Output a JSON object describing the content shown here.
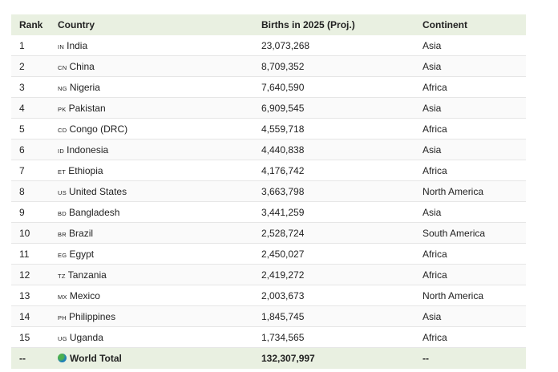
{
  "header": {
    "rank": "Rank",
    "country": "Country",
    "births": "Births in 2025 (Proj.)",
    "continent": "Continent"
  },
  "rows": [
    {
      "rank": "1",
      "code": "IN",
      "country": "India",
      "births": "23,073,268",
      "continent": "Asia"
    },
    {
      "rank": "2",
      "code": "CN",
      "country": "China",
      "births": "8,709,352",
      "continent": "Asia"
    },
    {
      "rank": "3",
      "code": "NG",
      "country": "Nigeria",
      "births": "7,640,590",
      "continent": "Africa"
    },
    {
      "rank": "4",
      "code": "PK",
      "country": "Pakistan",
      "births": "6,909,545",
      "continent": "Asia"
    },
    {
      "rank": "5",
      "code": "CD",
      "country": "Congo (DRC)",
      "births": "4,559,718",
      "continent": "Africa"
    },
    {
      "rank": "6",
      "code": "ID",
      "country": "Indonesia",
      "births": "4,440,838",
      "continent": "Asia"
    },
    {
      "rank": "7",
      "code": "ET",
      "country": "Ethiopia",
      "births": "4,176,742",
      "continent": "Africa"
    },
    {
      "rank": "8",
      "code": "US",
      "country": "United States",
      "births": "3,663,798",
      "continent": "North America"
    },
    {
      "rank": "9",
      "code": "BD",
      "country": "Bangladesh",
      "births": "3,441,259",
      "continent": "Asia"
    },
    {
      "rank": "10",
      "code": "BR",
      "country": "Brazil",
      "births": "2,528,724",
      "continent": "South America"
    },
    {
      "rank": "11",
      "code": "EG",
      "country": "Egypt",
      "births": "2,450,027",
      "continent": "Africa"
    },
    {
      "rank": "12",
      "code": "TZ",
      "country": "Tanzania",
      "births": "2,419,272",
      "continent": "Africa"
    },
    {
      "rank": "13",
      "code": "MX",
      "country": "Mexico",
      "births": "2,003,673",
      "continent": "North America"
    },
    {
      "rank": "14",
      "code": "PH",
      "country": "Philippines",
      "births": "1,845,745",
      "continent": "Asia"
    },
    {
      "rank": "15",
      "code": "UG",
      "country": "Uganda",
      "births": "1,734,565",
      "continent": "Africa"
    }
  ],
  "total": {
    "rank": "--",
    "icon": "globe-icon",
    "country": "World Total",
    "births": "132,307,997",
    "continent": "--"
  }
}
